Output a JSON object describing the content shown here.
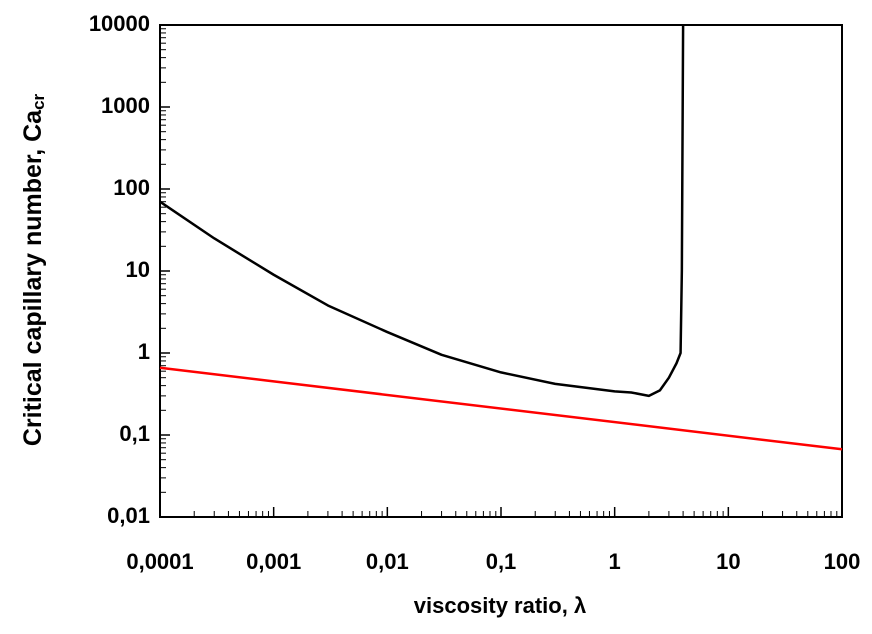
{
  "chart_data": {
    "type": "line",
    "x_label": "viscosity ratio, λ",
    "y_label": "Critical capillary number, Ca",
    "y_label_subscript": "cr",
    "x_log": true,
    "y_log": true,
    "xlim": [
      0.0001,
      100
    ],
    "ylim": [
      0.01,
      10000
    ],
    "xticks": [
      {
        "value": 0.0001,
        "label": "0,0001"
      },
      {
        "value": 0.001,
        "label": "0,001"
      },
      {
        "value": 0.01,
        "label": "0,01"
      },
      {
        "value": 0.1,
        "label": "0,1"
      },
      1,
      10,
      100
    ],
    "yticks": [
      {
        "value": 0.01,
        "label": "0,01"
      },
      {
        "value": 0.1,
        "label": "0,1"
      },
      1,
      10,
      100,
      1000,
      10000
    ],
    "series": [
      {
        "color": "#000000",
        "x": [
          0.0001,
          0.0003,
          0.001,
          0.003,
          0.01,
          0.03,
          0.1,
          0.3,
          1,
          1.4,
          2,
          2.5,
          3,
          3.5,
          3.8,
          3.9,
          4
        ],
        "values": [
          70,
          25,
          9,
          3.8,
          1.8,
          0.95,
          0.58,
          0.42,
          0.34,
          0.33,
          0.3,
          0.35,
          0.5,
          0.75,
          1,
          10,
          10000
        ]
      },
      {
        "color": "#ff0000",
        "x": [
          0.0001,
          100
        ],
        "values": [
          0.66,
          0.067
        ]
      }
    ]
  }
}
